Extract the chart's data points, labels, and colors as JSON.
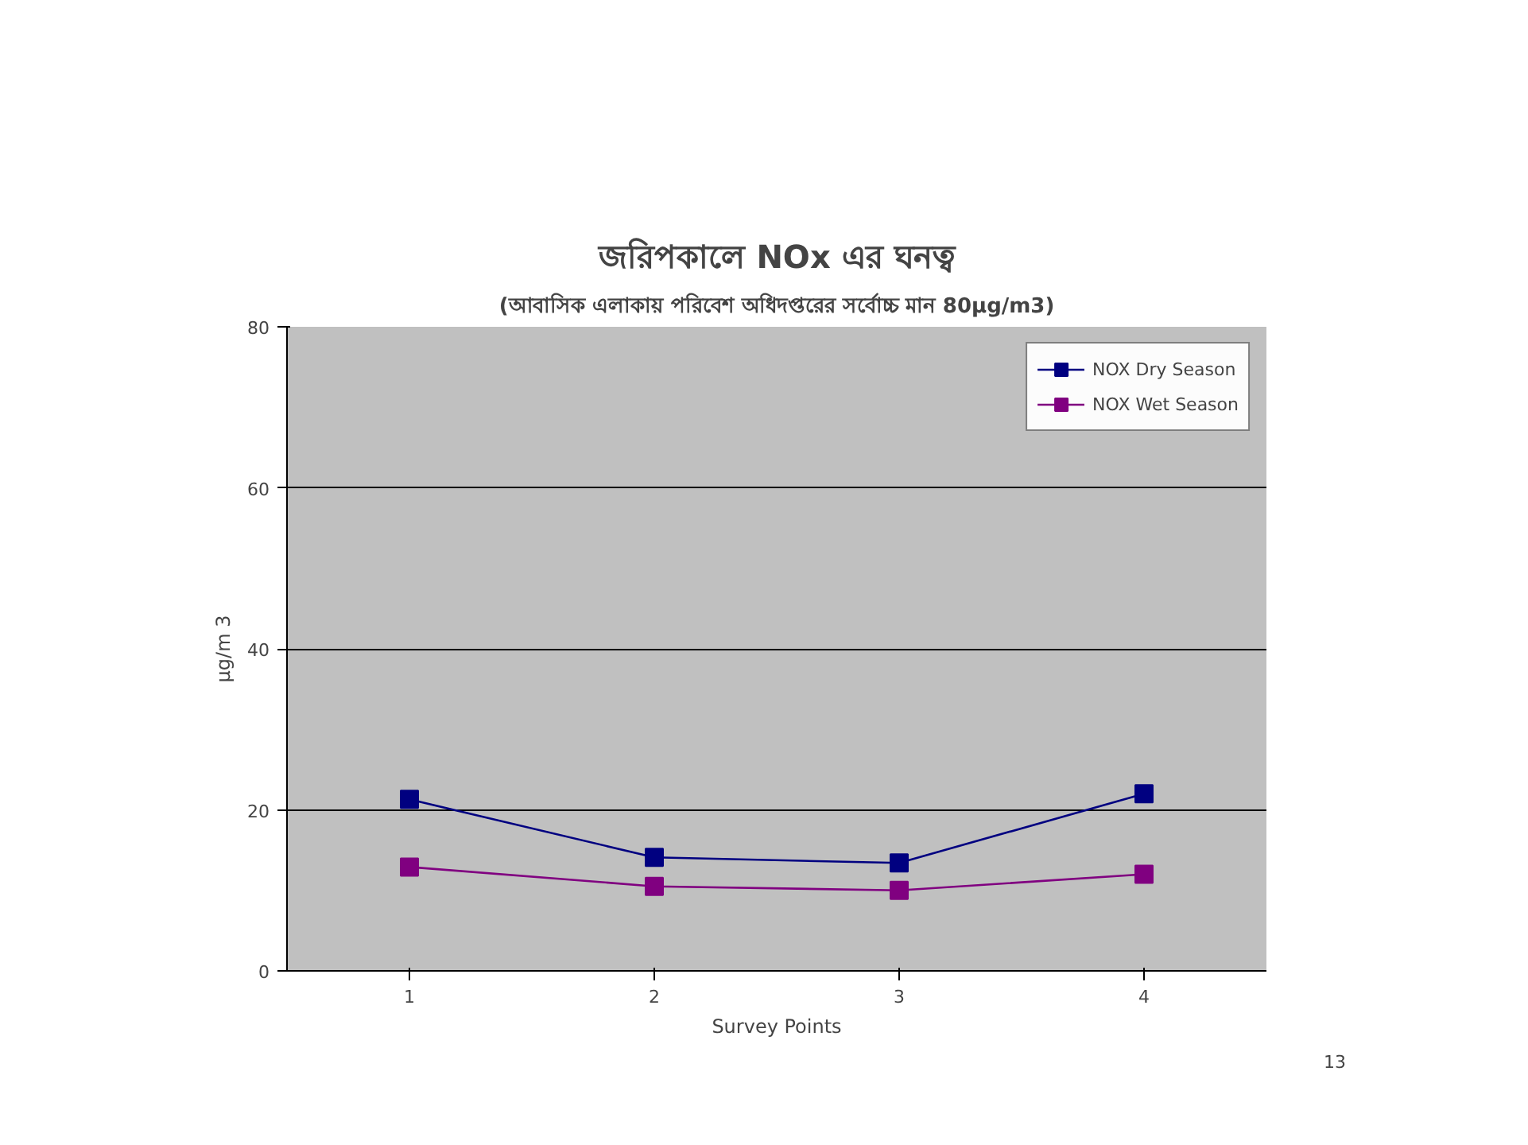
{
  "chart_data": {
    "type": "line",
    "title": "জরিপকালে NOx এর ঘনত্ব",
    "subtitle": "(আবাসিক এলাকায় পরিবেশ অধিদপ্তরের সর্বোচ্চ মান 80µg/m3)",
    "xlabel": "Survey Points",
    "ylabel": "µg/m 3",
    "categories": [
      "1",
      "2",
      "3",
      "4"
    ],
    "series": [
      {
        "name": "NOX Dry Season",
        "color": "#000080",
        "values": [
          21.3,
          14.1,
          13.4,
          22.0
        ]
      },
      {
        "name": "NOX Wet Season",
        "color": "#800080",
        "values": [
          12.9,
          10.5,
          10.0,
          12.0
        ]
      }
    ],
    "ylim": [
      0,
      80
    ],
    "yticks": [
      0,
      20,
      40,
      60,
      80
    ],
    "grid": "y",
    "legend": "top right",
    "marker": "square",
    "line_style": "solid",
    "annotations": [
      "13"
    ]
  }
}
